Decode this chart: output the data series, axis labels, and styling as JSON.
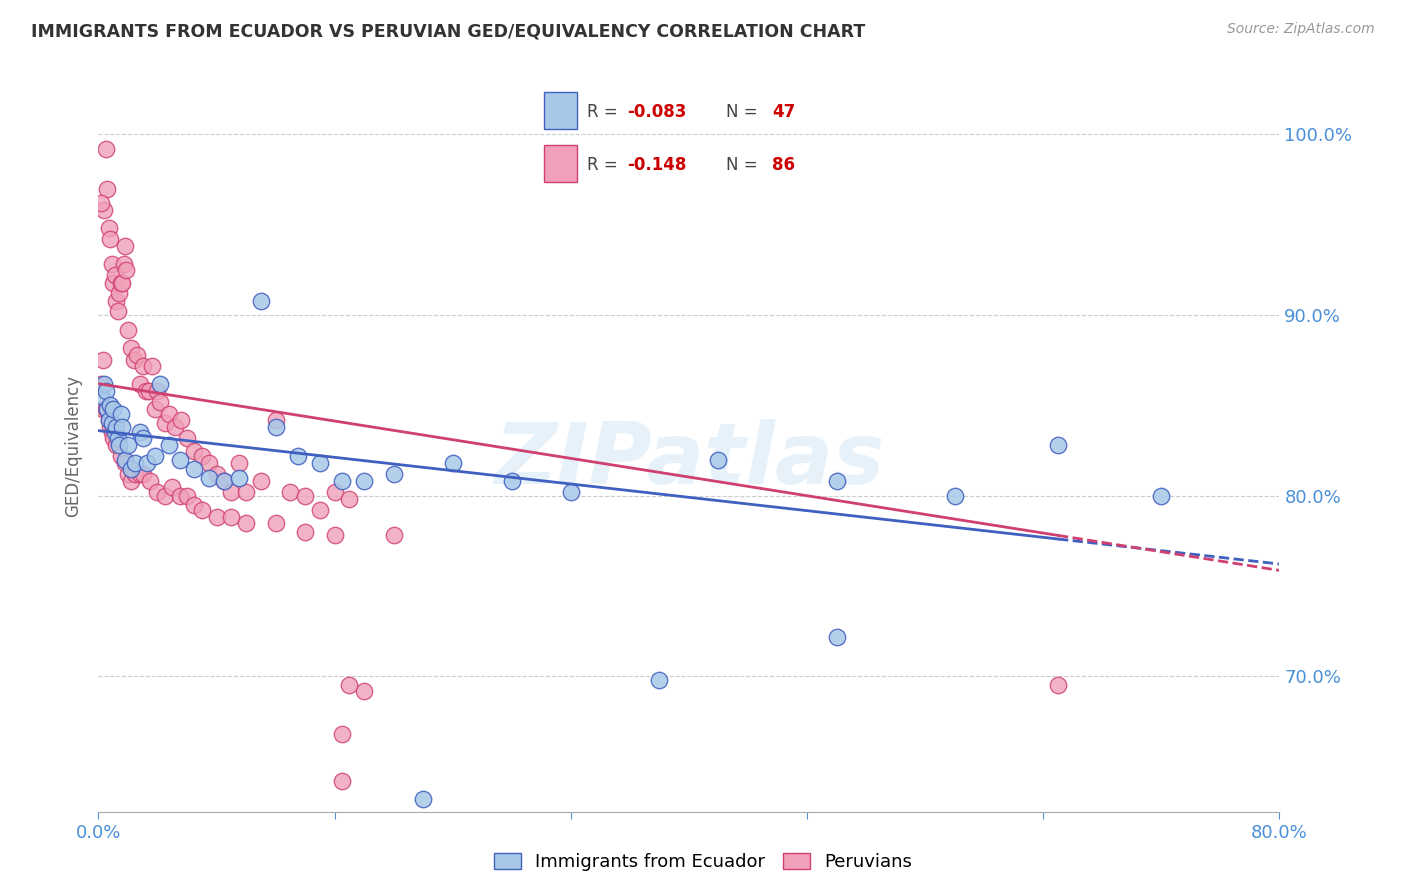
{
  "title": "IMMIGRANTS FROM ECUADOR VS PERUVIAN GED/EQUIVALENCY CORRELATION CHART",
  "source": "Source: ZipAtlas.com",
  "ylabel": "GED/Equivalency",
  "legend_label1": "Immigrants from Ecuador",
  "legend_label2": "Peruvians",
  "r1": "-0.083",
  "n1": "47",
  "r2": "-0.148",
  "n2": "86",
  "xmin": 0.0,
  "xmax": 0.8,
  "ymin": 0.625,
  "ymax": 1.03,
  "color_blue": "#a8c8e8",
  "color_pink": "#f0a0b8",
  "color_blue_line": "#4060c0",
  "color_pink_line": "#d04070",
  "color_axis_label": "#4a90d9",
  "watermark": "ZIPatlas",
  "blue_x": [
    0.002,
    0.004,
    0.005,
    0.006,
    0.007,
    0.008,
    0.009,
    0.01,
    0.011,
    0.012,
    0.013,
    0.014,
    0.015,
    0.016,
    0.018,
    0.02,
    0.022,
    0.025,
    0.028,
    0.03,
    0.033,
    0.038,
    0.042,
    0.048,
    0.055,
    0.065,
    0.075,
    0.085,
    0.095,
    0.11,
    0.12,
    0.135,
    0.15,
    0.165,
    0.18,
    0.2,
    0.24,
    0.28,
    0.32,
    0.38,
    0.42,
    0.5,
    0.58,
    0.65,
    0.72,
    0.5,
    0.22
  ],
  "blue_y": [
    0.855,
    0.862,
    0.858,
    0.848,
    0.842,
    0.85,
    0.84,
    0.848,
    0.835,
    0.838,
    0.832,
    0.828,
    0.845,
    0.838,
    0.82,
    0.828,
    0.815,
    0.818,
    0.835,
    0.832,
    0.818,
    0.822,
    0.862,
    0.828,
    0.82,
    0.815,
    0.81,
    0.808,
    0.81,
    0.908,
    0.838,
    0.822,
    0.818,
    0.808,
    0.808,
    0.812,
    0.818,
    0.808,
    0.802,
    0.698,
    0.82,
    0.808,
    0.8,
    0.828,
    0.8,
    0.722,
    0.632
  ],
  "pink_x": [
    0.002,
    0.003,
    0.004,
    0.005,
    0.006,
    0.007,
    0.008,
    0.009,
    0.01,
    0.011,
    0.012,
    0.013,
    0.014,
    0.015,
    0.016,
    0.017,
    0.018,
    0.019,
    0.02,
    0.022,
    0.024,
    0.026,
    0.028,
    0.03,
    0.032,
    0.034,
    0.036,
    0.038,
    0.04,
    0.042,
    0.045,
    0.048,
    0.052,
    0.056,
    0.06,
    0.065,
    0.07,
    0.075,
    0.08,
    0.085,
    0.09,
    0.095,
    0.1,
    0.11,
    0.12,
    0.13,
    0.14,
    0.15,
    0.16,
    0.17,
    0.003,
    0.005,
    0.006,
    0.007,
    0.008,
    0.009,
    0.01,
    0.012,
    0.015,
    0.018,
    0.02,
    0.022,
    0.025,
    0.028,
    0.03,
    0.035,
    0.04,
    0.045,
    0.05,
    0.055,
    0.06,
    0.065,
    0.07,
    0.08,
    0.09,
    0.1,
    0.12,
    0.14,
    0.16,
    0.2,
    0.18,
    0.65,
    0.002,
    0.17,
    0.165,
    0.165
  ],
  "pink_y": [
    0.862,
    0.875,
    0.958,
    0.992,
    0.97,
    0.948,
    0.942,
    0.928,
    0.918,
    0.922,
    0.908,
    0.902,
    0.912,
    0.918,
    0.918,
    0.928,
    0.938,
    0.925,
    0.892,
    0.882,
    0.875,
    0.878,
    0.862,
    0.872,
    0.858,
    0.858,
    0.872,
    0.848,
    0.858,
    0.852,
    0.84,
    0.845,
    0.838,
    0.842,
    0.832,
    0.825,
    0.822,
    0.818,
    0.812,
    0.808,
    0.802,
    0.818,
    0.802,
    0.808,
    0.842,
    0.802,
    0.8,
    0.792,
    0.802,
    0.798,
    0.848,
    0.848,
    0.848,
    0.842,
    0.838,
    0.835,
    0.832,
    0.828,
    0.822,
    0.818,
    0.812,
    0.808,
    0.812,
    0.812,
    0.812,
    0.808,
    0.802,
    0.8,
    0.805,
    0.8,
    0.8,
    0.795,
    0.792,
    0.788,
    0.788,
    0.785,
    0.785,
    0.78,
    0.778,
    0.778,
    0.692,
    0.695,
    0.962,
    0.695,
    0.668,
    0.642
  ]
}
